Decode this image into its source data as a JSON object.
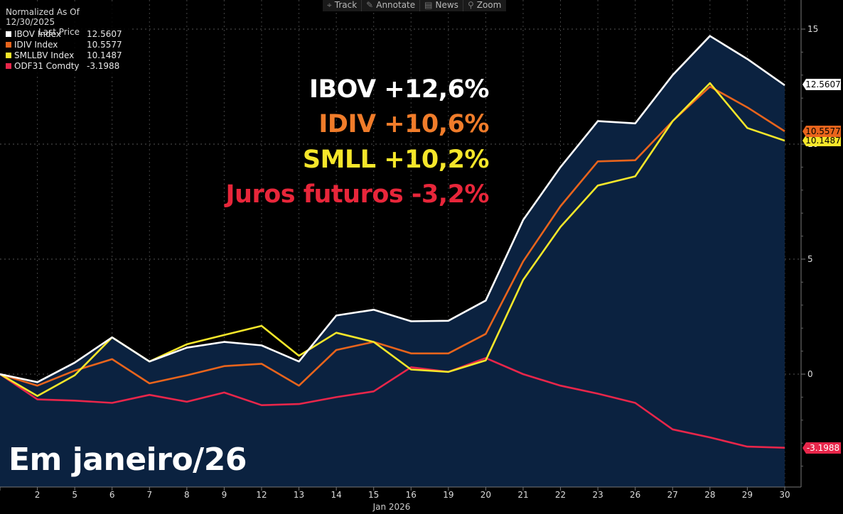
{
  "legend": {
    "header": "Normalized As Of 12/30/2025",
    "subheader": "Last Price",
    "items": [
      {
        "name": "IBOV Index",
        "value": "12.5607",
        "color": "#ffffff"
      },
      {
        "name": "IDIV Index",
        "value": "10.5577",
        "color": "#e8641c"
      },
      {
        "name": "SMLLBV Index",
        "value": "10.1487",
        "color": "#f5e62a"
      },
      {
        "name": "ODF31 Comdty",
        "value": "-3.1988",
        "color": "#e8264a"
      }
    ]
  },
  "toolbar": [
    {
      "label": "Track",
      "icon": "crosshair-icon",
      "glyph": "⌖"
    },
    {
      "label": "Annotate",
      "icon": "pencil-icon",
      "glyph": "✎"
    },
    {
      "label": "News",
      "icon": "news-icon",
      "glyph": "▤"
    },
    {
      "label": "Zoom",
      "icon": "magnifier-icon",
      "glyph": "⚲"
    }
  ],
  "headlines": [
    {
      "text": "IBOV +12,6%",
      "color": "#ffffff"
    },
    {
      "text": "IDIV +10,6%",
      "color": "#f07c2a"
    },
    {
      "text": "SMLL +10,2%",
      "color": "#f5e62a"
    },
    {
      "text": "Juros futuros -3,2%",
      "color": "#e8263a"
    }
  ],
  "footer_text": "Em janeiro/26",
  "chart_data": {
    "type": "line",
    "x": [
      "",
      "2",
      "5",
      "6",
      "7",
      "8",
      "9",
      "12",
      "13",
      "14",
      "15",
      "16",
      "19",
      "20",
      "21",
      "22",
      "23",
      "26",
      "27",
      "28",
      "29",
      "30"
    ],
    "xlabel": "Jan 2026",
    "ylim": [
      -5,
      16
    ],
    "yticks": [
      0,
      5,
      10,
      15
    ],
    "grid": true,
    "area_fill": {
      "series": "IBOV Index",
      "color": "#0b2240"
    },
    "series": [
      {
        "name": "IBOV Index",
        "color": "#ffffff",
        "last_label": "12.5607",
        "values": [
          0,
          -0.35,
          0.5,
          1.6,
          0.55,
          1.15,
          1.4,
          1.25,
          0.55,
          2.55,
          2.8,
          2.3,
          2.32,
          3.2,
          6.7,
          9.0,
          11.0,
          10.9,
          13.0,
          14.7,
          13.7,
          12.56
        ]
      },
      {
        "name": "IDIV Index",
        "color": "#e8641c",
        "last_label": "10.5577",
        "values": [
          0,
          -0.5,
          0.15,
          0.65,
          -0.4,
          -0.05,
          0.35,
          0.45,
          -0.5,
          1.05,
          1.4,
          0.9,
          0.9,
          1.75,
          4.9,
          7.3,
          9.25,
          9.3,
          11.0,
          12.5,
          11.6,
          10.56
        ]
      },
      {
        "name": "SMLLBV Index",
        "color": "#f5e62a",
        "last_label": "10.1487",
        "values": [
          0,
          -0.95,
          -0.05,
          1.6,
          0.55,
          1.3,
          1.7,
          2.1,
          0.8,
          1.8,
          1.4,
          0.2,
          0.1,
          0.6,
          4.1,
          6.4,
          8.2,
          8.6,
          11.0,
          12.65,
          10.7,
          10.15
        ]
      },
      {
        "name": "ODF31 Comdty",
        "color": "#e8264a",
        "last_label": "-3.1988",
        "values": [
          0,
          -1.1,
          -1.15,
          -1.25,
          -0.9,
          -1.2,
          -0.8,
          -1.35,
          -1.3,
          -1.0,
          -0.75,
          0.3,
          0.1,
          0.7,
          0.0,
          -0.5,
          -0.85,
          -1.25,
          -2.4,
          -2.75,
          -3.15,
          -3.2
        ]
      }
    ]
  }
}
